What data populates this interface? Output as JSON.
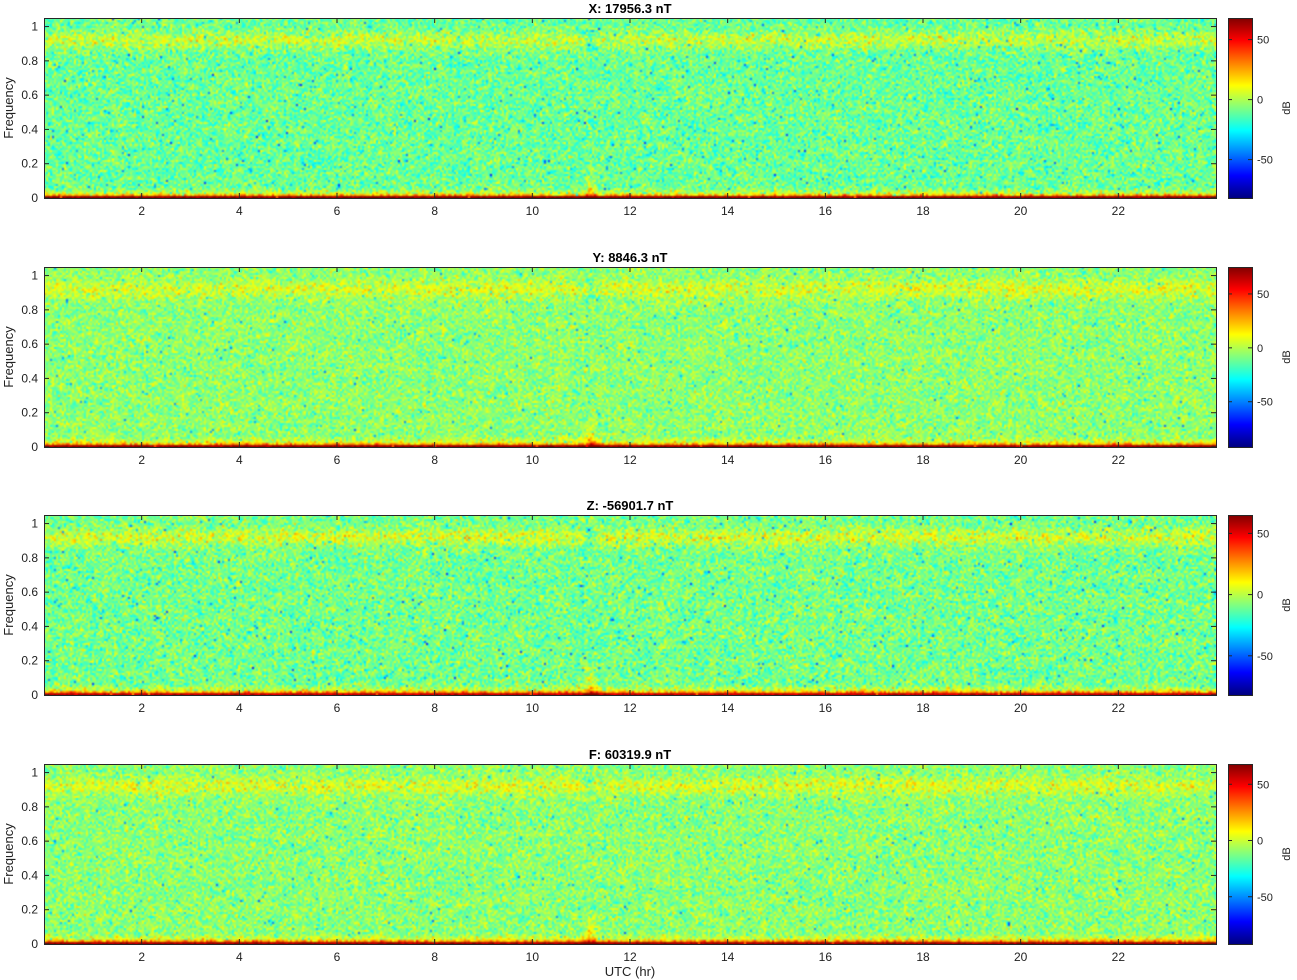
{
  "chart_data": [
    {
      "type": "heatmap",
      "title": "X: 17956.3 nT",
      "ylabel": "Frequency",
      "xlabel": "",
      "xlim": [
        0,
        24
      ],
      "ylim": [
        0,
        1.05
      ],
      "xticks": [
        "2",
        "4",
        "6",
        "8",
        "10",
        "12",
        "14",
        "16",
        "18",
        "20",
        "22"
      ],
      "yticks": [
        "0",
        "0.2",
        "0.4",
        "0.6",
        "0.8",
        "1"
      ],
      "colormap": "jet",
      "colorbar": {
        "label": "dB",
        "clim": [
          -82,
          68
        ],
        "ticks": [
          "50",
          "0",
          "-50"
        ]
      },
      "features": {
        "dc_band_db": 65,
        "dc_band_freq": 0.01,
        "high_band_center": 0.92,
        "high_band_db": 8,
        "background_db": -10,
        "event_hour": 11.2
      }
    },
    {
      "type": "heatmap",
      "title": "Y: 8846.3 nT",
      "ylabel": "Frequency",
      "xlabel": "",
      "xlim": [
        0,
        24
      ],
      "ylim": [
        0,
        1.05
      ],
      "xticks": [
        "2",
        "4",
        "6",
        "8",
        "10",
        "12",
        "14",
        "16",
        "18",
        "20",
        "22"
      ],
      "yticks": [
        "0",
        "0.2",
        "0.4",
        "0.6",
        "0.8",
        "1"
      ],
      "colormap": "jet",
      "colorbar": {
        "label": "dB",
        "clim": [
          -92,
          75
        ],
        "ticks": [
          "50",
          "0",
          "-50"
        ]
      },
      "features": {
        "dc_band_db": 70,
        "dc_band_freq": 0.01,
        "high_band_center": 0.92,
        "high_band_db": 10,
        "background_db": -6,
        "event_hour": 11.2
      }
    },
    {
      "type": "heatmap",
      "title": "Z: -56901.7 nT",
      "ylabel": "Frequency",
      "xlabel": "",
      "xlim": [
        0,
        24
      ],
      "ylim": [
        0,
        1.05
      ],
      "xticks": [
        "2",
        "4",
        "6",
        "8",
        "10",
        "12",
        "14",
        "16",
        "18",
        "20",
        "22"
      ],
      "yticks": [
        "0",
        "0.2",
        "0.4",
        "0.6",
        "0.8",
        "1"
      ],
      "colormap": "jet",
      "colorbar": {
        "label": "dB",
        "clim": [
          -82,
          65
        ],
        "ticks": [
          "50",
          "0",
          "-50"
        ]
      },
      "features": {
        "dc_band_db": 55,
        "dc_band_freq": 0.01,
        "high_band_center": 0.92,
        "high_band_db": 8,
        "background_db": -10,
        "event_hour": 11.2
      }
    },
    {
      "type": "heatmap",
      "title": "F: 60319.9 nT",
      "ylabel": "Frequency",
      "xlabel": "UTC (hr)",
      "xlim": [
        0,
        24
      ],
      "ylim": [
        0,
        1.05
      ],
      "xticks": [
        "2",
        "4",
        "6",
        "8",
        "10",
        "12",
        "14",
        "16",
        "18",
        "20",
        "22"
      ],
      "yticks": [
        "0",
        "0.2",
        "0.4",
        "0.6",
        "0.8",
        "1"
      ],
      "colormap": "jet",
      "colorbar": {
        "label": "dB",
        "clim": [
          -92,
          68
        ],
        "ticks": [
          "50",
          "0",
          "-50"
        ]
      },
      "features": {
        "dc_band_db": 62,
        "dc_band_freq": 0.01,
        "high_band_center": 0.92,
        "high_band_db": 6,
        "background_db": -10,
        "event_hour": 11.2
      }
    }
  ]
}
